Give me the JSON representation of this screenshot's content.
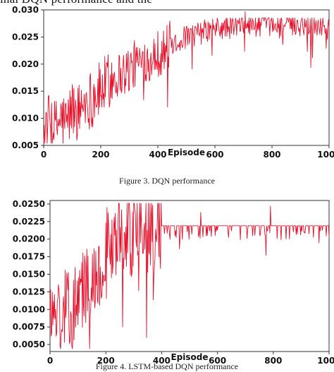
{
  "top_text": "inal DQN performance and the",
  "caption1": "Figure 3. DQN performance",
  "caption2": "Figure 4. LSTM-based DQN performance",
  "line_color": "#e8102a",
  "chart_data": [
    {
      "type": "line",
      "xlabel": "Episode",
      "ylabel": "",
      "title": "",
      "xlim": [
        0,
        1000
      ],
      "ylim": [
        0.005,
        0.03
      ],
      "xticks": [
        "0",
        "200",
        "400",
        "600",
        "800",
        "1000"
      ],
      "yticks": [
        "0.005",
        "0.010",
        "0.015",
        "0.020",
        "0.025",
        "0.030"
      ],
      "series": [
        {
          "x": [
            0,
            20,
            40,
            60,
            80,
            100,
            120,
            140,
            160,
            180,
            200,
            220,
            240,
            260,
            280,
            300,
            320,
            340,
            360,
            380,
            400,
            420,
            440,
            460,
            480,
            500,
            520,
            540,
            560,
            580,
            600,
            620,
            640,
            660,
            680,
            700,
            720,
            740,
            760,
            780,
            800,
            820,
            840,
            860,
            880,
            900,
            920,
            940,
            960,
            980,
            1000
          ],
          "values": [
            0.007,
            0.0095,
            0.008,
            0.01,
            0.009,
            0.012,
            0.011,
            0.013,
            0.0135,
            0.0145,
            0.015,
            0.0165,
            0.0175,
            0.018,
            0.0185,
            0.019,
            0.02,
            0.0205,
            0.021,
            0.0215,
            0.022,
            0.0225,
            0.0235,
            0.024,
            0.0245,
            0.025,
            0.0253,
            0.0255,
            0.026,
            0.0262,
            0.0265,
            0.0265,
            0.0268,
            0.0268,
            0.027,
            0.0272,
            0.0272,
            0.0272,
            0.0273,
            0.0273,
            0.0273,
            0.0273,
            0.0273,
            0.0273,
            0.0273,
            0.0273,
            0.0273,
            0.0273,
            0.0273,
            0.0273,
            0.0265
          ]
        }
      ]
    },
    {
      "type": "line",
      "xlabel": "Episode",
      "ylabel": "",
      "title": "",
      "xlim": [
        0,
        1000
      ],
      "ylim": [
        0.004,
        0.0255
      ],
      "xticks": [
        "0",
        "200",
        "400",
        "600",
        "800",
        "1000"
      ],
      "yticks": [
        "0.0050",
        "0.0075",
        "0.0100",
        "0.0125",
        "0.0150",
        "0.0175",
        "0.0200",
        "0.0225",
        "0.0250"
      ],
      "series": [
        {
          "x": [
            0,
            20,
            40,
            60,
            80,
            100,
            120,
            140,
            160,
            180,
            200,
            220,
            240,
            260,
            280,
            300,
            320,
            340,
            360,
            380,
            400,
            420,
            440,
            460,
            480,
            500,
            520,
            540,
            560,
            580,
            600,
            620,
            640,
            660,
            680,
            700,
            720,
            740,
            760,
            780,
            800,
            820,
            840,
            860,
            880,
            900,
            920,
            940,
            960,
            980,
            1000
          ],
          "values": [
            0.009,
            0.01,
            0.008,
            0.011,
            0.0095,
            0.012,
            0.013,
            0.014,
            0.015,
            0.016,
            0.018,
            0.019,
            0.02,
            0.0205,
            0.021,
            0.0215,
            0.0218,
            0.0218,
            0.0218,
            0.0219,
            0.0219,
            0.0219,
            0.0219,
            0.0219,
            0.0219,
            0.0219,
            0.0219,
            0.0219,
            0.0219,
            0.0219,
            0.0219,
            0.0219,
            0.0219,
            0.0219,
            0.0219,
            0.0219,
            0.0219,
            0.0219,
            0.0219,
            0.0219,
            0.0219,
            0.0219,
            0.0219,
            0.0219,
            0.0219,
            0.0219,
            0.0219,
            0.0219,
            0.0219,
            0.0219,
            0.0219
          ]
        }
      ]
    }
  ]
}
